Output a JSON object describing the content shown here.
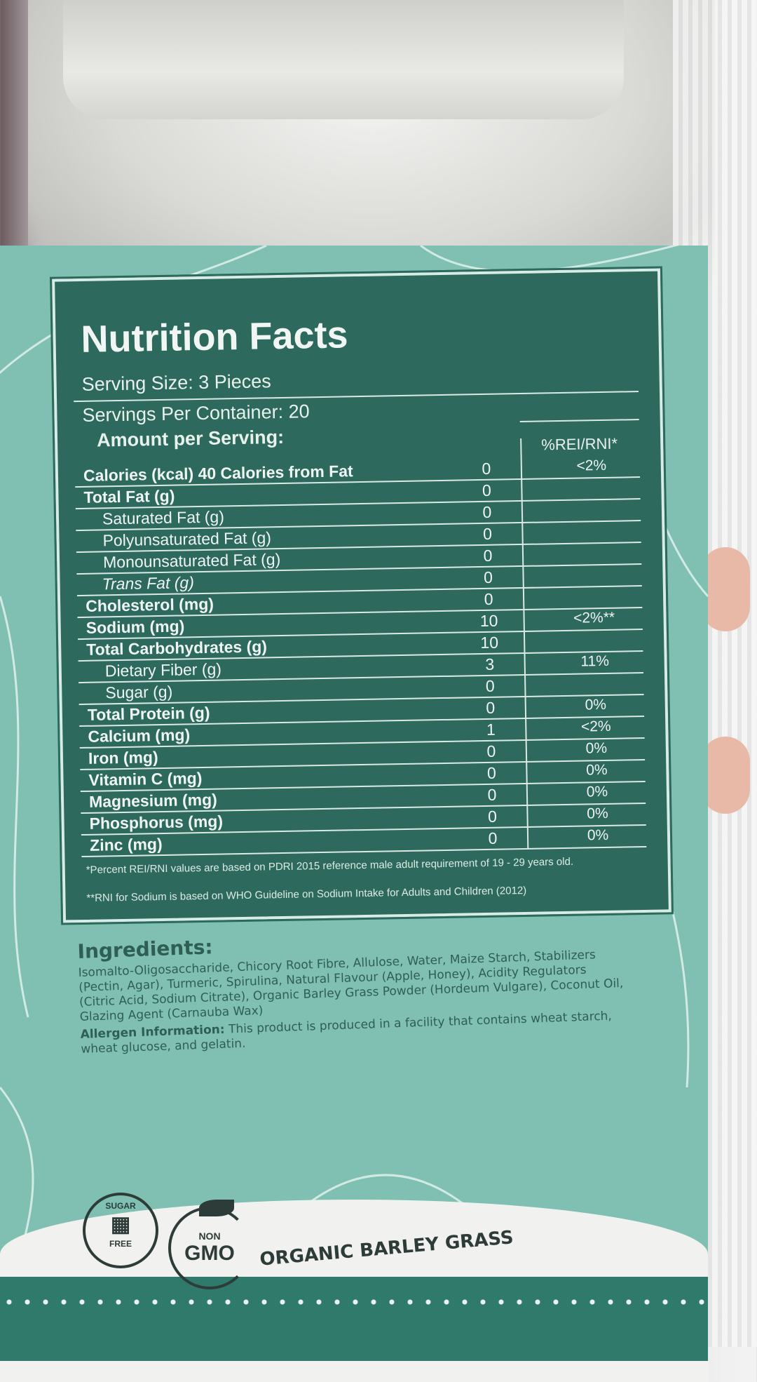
{
  "nutrition_facts": {
    "title": "Nutrition Facts",
    "serving_size": "Serving Size: 3 Pieces",
    "servings_per_container": "Servings Per Container: 20",
    "amount_per_serving": "Amount per Serving:",
    "percent_header": "%REI/RNI*",
    "rows": [
      {
        "name": "Calories (kcal) 40 Calories from Fat",
        "value": "0",
        "percent": "<2%",
        "style": "bold"
      },
      {
        "name": "Total Fat (g)",
        "value": "0",
        "percent": "",
        "style": "bold"
      },
      {
        "name": "Saturated Fat (g)",
        "value": "0",
        "percent": "",
        "style": "indent"
      },
      {
        "name": "Polyunsaturated Fat (g)",
        "value": "0",
        "percent": "",
        "style": "indent"
      },
      {
        "name": "Monounsaturated Fat (g)",
        "value": "0",
        "percent": "",
        "style": "indent"
      },
      {
        "name": "Trans Fat (g)",
        "value": "0",
        "percent": "",
        "style": "italic"
      },
      {
        "name": "Cholesterol (mg)",
        "value": "0",
        "percent": "",
        "style": "bold"
      },
      {
        "name": "Sodium (mg)",
        "value": "10",
        "percent": "<2%**",
        "style": "bold"
      },
      {
        "name": "Total Carbohydrates (g)",
        "value": "10",
        "percent": "",
        "style": "bold"
      },
      {
        "name": "Dietary Fiber (g)",
        "value": "3",
        "percent": "11%",
        "style": "indent"
      },
      {
        "name": "Sugar (g)",
        "value": "0",
        "percent": "",
        "style": "indent"
      },
      {
        "name": "Total Protein (g)",
        "value": "0",
        "percent": "0%",
        "style": "bold"
      },
      {
        "name": "Calcium (mg)",
        "value": "1",
        "percent": "<2%",
        "style": "bold"
      },
      {
        "name": "Iron (mg)",
        "value": "0",
        "percent": "0%",
        "style": "bold"
      },
      {
        "name": "Vitamin C (mg)",
        "value": "0",
        "percent": "0%",
        "style": "bold"
      },
      {
        "name": "Magnesium (mg)",
        "value": "0",
        "percent": "0%",
        "style": "bold"
      },
      {
        "name": "Phosphorus (mg)",
        "value": "0",
        "percent": "0%",
        "style": "bold"
      },
      {
        "name": "Zinc (mg)",
        "value": "0",
        "percent": "0%",
        "style": "bold"
      }
    ],
    "footnote_1": "*Percent REI/RNI values are based on PDRI 2015 reference male adult requirement of 19 - 29 years old.",
    "footnote_2": "**RNI for Sodium is based on WHO Guideline on Sodium Intake for Adults and Children (2012)"
  },
  "ingredients": {
    "heading": "Ingredients:",
    "text": "Isomalto-Oligosaccharide, Chicory Root Fibre, Allulose, Water, Maize Starch, Stabilizers (Pectin, Agar), Turmeric, Spirulina, Natural Flavour (Apple, Honey), Acidity Regulators (Citric Acid, Sodium Citrate), Organic Barley Grass Powder (Hordeum Vulgare), Coconut Oil, Glazing Agent (Carnauba Wax)"
  },
  "allergen": {
    "label": "Allergen Information:",
    "text": "This product is produced in a facility that contains wheat starch, wheat glucose, and gelatin."
  },
  "badges": {
    "sugar_free_top": "SUGAR",
    "sugar_free_bottom": "FREE",
    "non_gmo_top": "NON",
    "non_gmo_bottom": "GMO",
    "tagline": "ORGANIC BARLEY GRASS"
  },
  "colors": {
    "panel": "#2d6a5d",
    "label": "#7fc0b2",
    "text_dark": "#2d3c38"
  }
}
